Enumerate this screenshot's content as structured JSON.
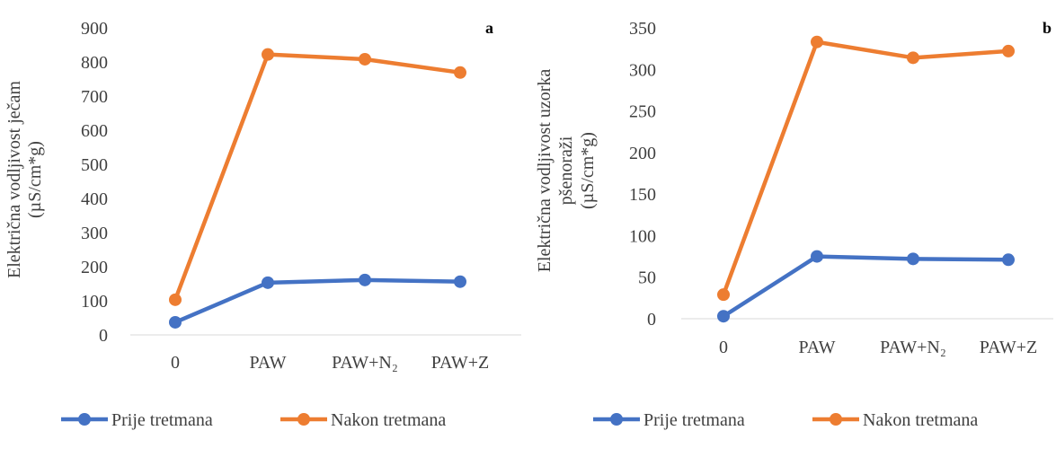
{
  "chart_data": [
    {
      "type": "line",
      "panel_label": "a",
      "categories": [
        "0",
        "PAW",
        "PAW+N₂",
        "PAW+Z"
      ],
      "ylabel_line1": "Električna vodljivost ječam",
      "ylabel_line2": "(µS/cm*g)",
      "ylim": [
        0,
        900
      ],
      "yticks": [
        0,
        100,
        200,
        300,
        400,
        500,
        600,
        700,
        800,
        900
      ],
      "legend_position": "bottom",
      "series": [
        {
          "name": "Prije tretmana",
          "color": "#4472C4",
          "values": [
            37,
            153,
            161,
            156
          ]
        },
        {
          "name": "Nakon tretmana",
          "color": "#ED7D31",
          "values": [
            103,
            822,
            808,
            769
          ]
        }
      ]
    },
    {
      "type": "line",
      "panel_label": "b",
      "categories": [
        "0",
        "PAW",
        "PAW+N₂",
        "PAW+Z"
      ],
      "ylabel_line1": "Električna vodljivost uzorka",
      "ylabel_line2": "pšenoraži",
      "ylabel_line3": "(µS/cm*g)",
      "ylim": [
        0,
        350
      ],
      "yticks": [
        0,
        50,
        100,
        150,
        200,
        250,
        300,
        350
      ],
      "legend_position": "bottom",
      "series": [
        {
          "name": "Prije tretmana",
          "color": "#4472C4",
          "values": [
            3,
            75,
            72,
            71
          ]
        },
        {
          "name": "Nakon tretmana",
          "color": "#ED7D31",
          "values": [
            29,
            333,
            314,
            322
          ]
        }
      ]
    }
  ]
}
